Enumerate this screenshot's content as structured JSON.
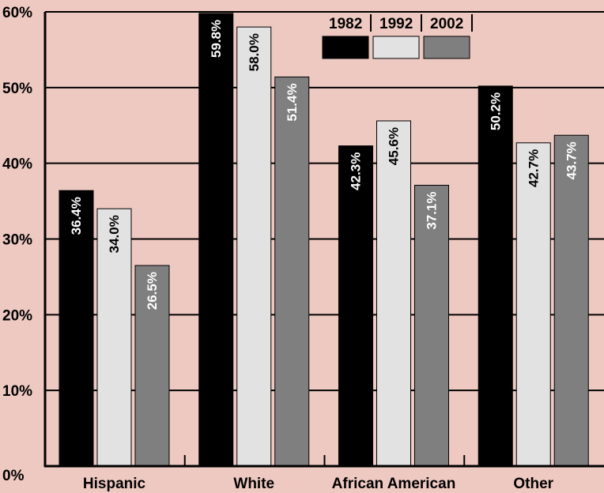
{
  "chart_data": {
    "type": "bar",
    "categories": [
      "Hispanic",
      "White",
      "African American",
      "Other"
    ],
    "series": [
      {
        "name": "1982",
        "values": [
          36.4,
          59.8,
          42.3,
          50.2
        ],
        "labels": [
          "36.4%",
          "59.8%",
          "42.3%",
          "50.2%"
        ],
        "color": "#000000",
        "label_color": "#ffffff"
      },
      {
        "name": "1992",
        "values": [
          34.0,
          58.0,
          45.6,
          42.7
        ],
        "labels": [
          "34.0%",
          "58.0%",
          "45.6%",
          "42.7%"
        ],
        "color": "#e2e2e2",
        "label_color": "#000000"
      },
      {
        "name": "2002",
        "values": [
          26.5,
          51.4,
          37.1,
          43.7
        ],
        "labels": [
          "26.5%",
          "51.4%",
          "37.1%",
          "43.7%"
        ],
        "color": "#7f7f7f",
        "label_color": "#ffffff"
      }
    ],
    "y_ticks": [
      "0%",
      "10%",
      "20%",
      "30%",
      "40%",
      "50%",
      "60%"
    ],
    "ylim": [
      0,
      60
    ],
    "grid": true,
    "legend_position": "top-right",
    "background": "#eec9c2"
  }
}
